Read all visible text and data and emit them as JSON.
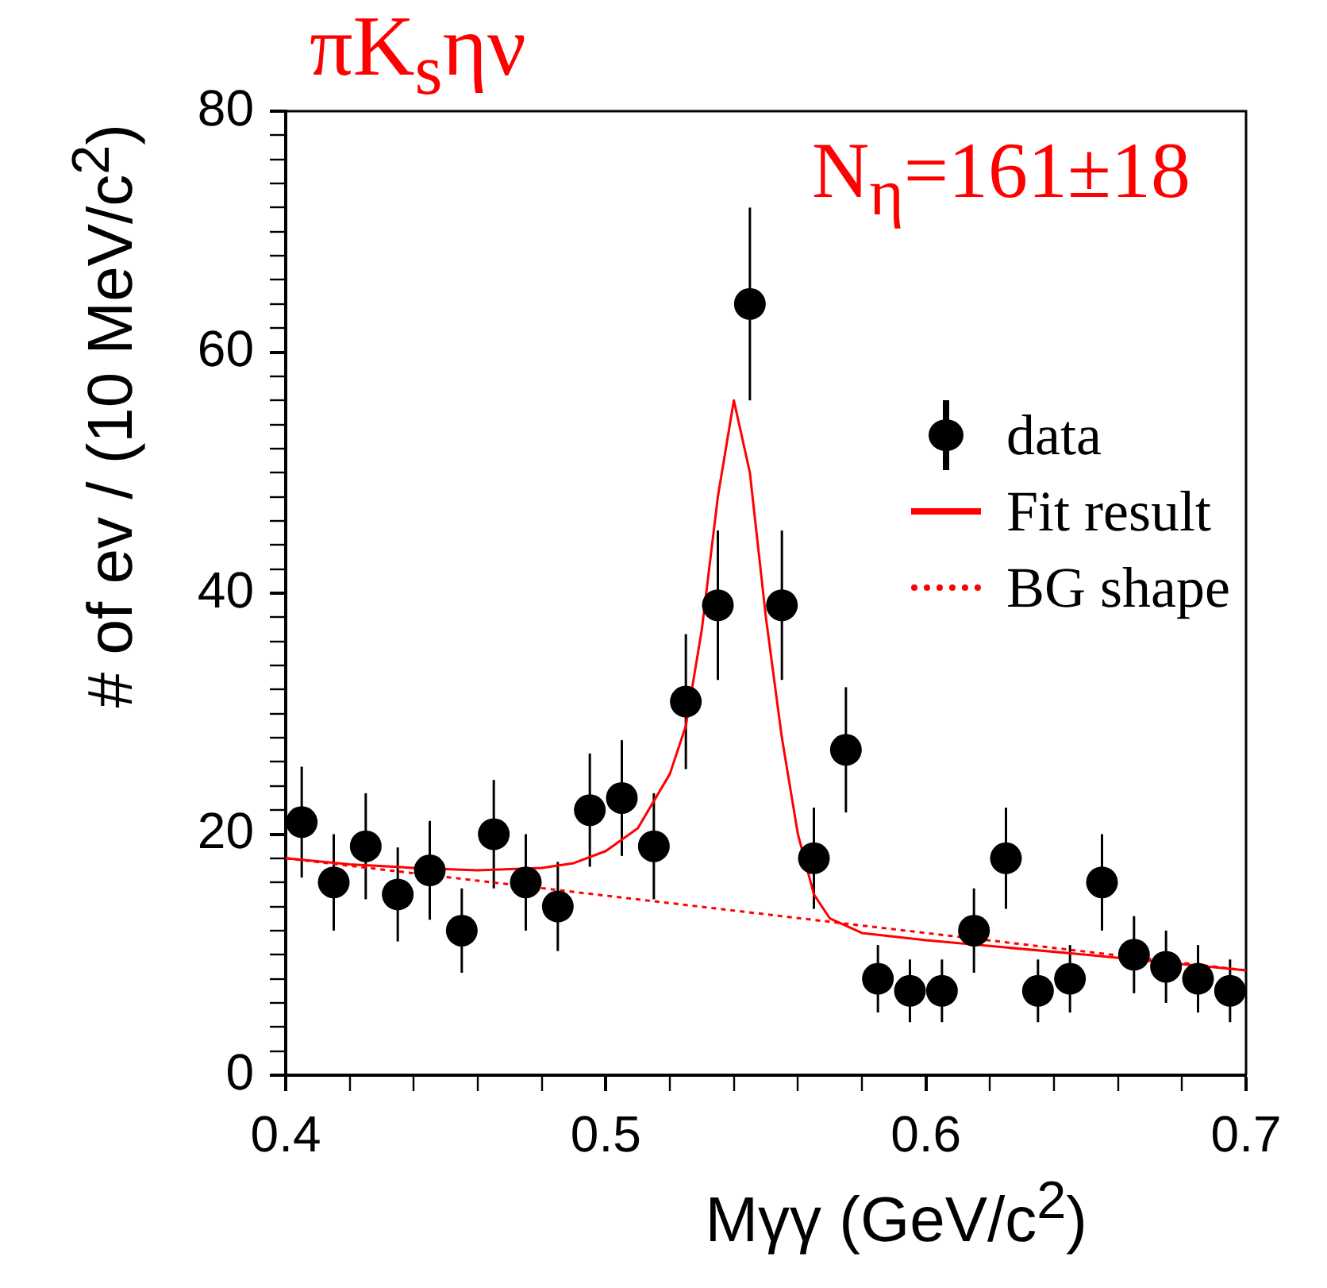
{
  "chart_data": {
    "type": "scatter",
    "title": "πK$_{s}$ην",
    "xlabel": "Mγγ (GeV/c$^{2}$)",
    "ylabel": "# of ev / (10 MeV/c$^{2}$)",
    "annotations": [
      "N$_{η}$=161±18"
    ],
    "xlim": [
      0.4,
      0.7
    ],
    "xticks": [
      0.4,
      {
        "value": 0.42,
        "label": null
      },
      {
        "value": 0.44,
        "label": null
      },
      {
        "value": 0.46,
        "label": null
      },
      {
        "value": 0.48,
        "label": null
      },
      0.5,
      {
        "value": 0.52,
        "label": null
      },
      {
        "value": 0.54,
        "label": null
      },
      {
        "value": 0.56,
        "label": null
      },
      {
        "value": 0.58,
        "label": null
      },
      0.6,
      {
        "value": 0.62,
        "label": null
      },
      {
        "value": 0.64,
        "label": null
      },
      {
        "value": 0.66,
        "label": null
      },
      {
        "value": 0.68,
        "label": null
      },
      0.7
    ],
    "ylim": [
      0,
      80
    ],
    "yticks": [
      0,
      {
        "value": 2,
        "label": null
      },
      {
        "value": 4,
        "label": null
      },
      {
        "value": 6,
        "label": null
      },
      {
        "value": 8,
        "label": null
      },
      {
        "value": 10,
        "label": null
      },
      {
        "value": 12,
        "label": null
      },
      {
        "value": 14,
        "label": null
      },
      {
        "value": 16,
        "label": null
      },
      {
        "value": 18,
        "label": null
      },
      20,
      {
        "value": 22,
        "label": null
      },
      {
        "value": 24,
        "label": null
      },
      {
        "value": 26,
        "label": null
      },
      {
        "value": 28,
        "label": null
      },
      {
        "value": 30,
        "label": null
      },
      {
        "value": 32,
        "label": null
      },
      {
        "value": 34,
        "label": null
      },
      {
        "value": 36,
        "label": null
      },
      {
        "value": 38,
        "label": null
      },
      40,
      {
        "value": 42,
        "label": null
      },
      {
        "value": 44,
        "label": null
      },
      {
        "value": 46,
        "label": null
      },
      {
        "value": 48,
        "label": null
      },
      {
        "value": 50,
        "label": null
      },
      {
        "value": 52,
        "label": null
      },
      {
        "value": 54,
        "label": null
      },
      {
        "value": 56,
        "label": null
      },
      {
        "value": 58,
        "label": null
      },
      60,
      {
        "value": 62,
        "label": null
      },
      {
        "value": 64,
        "label": null
      },
      {
        "value": 66,
        "label": null
      },
      {
        "value": 68,
        "label": null
      },
      {
        "value": 70,
        "label": null
      },
      {
        "value": 72,
        "label": null
      },
      {
        "value": 74,
        "label": null
      },
      {
        "value": 76,
        "label": null
      },
      {
        "value": 78,
        "label": null
      },
      80
    ],
    "grid": false,
    "legend": "top right",
    "series": [
      {
        "name": "data",
        "type": "scatter",
        "color": "#000000",
        "marker": "circle",
        "x": [
          0.405,
          0.415,
          0.425,
          0.435,
          0.445,
          0.455,
          0.465,
          0.475,
          0.485,
          0.495,
          0.505,
          0.515,
          0.525,
          0.535,
          0.545,
          0.555,
          0.565,
          0.575,
          0.585,
          0.595,
          0.605,
          0.615,
          0.625,
          0.635,
          0.645,
          0.655,
          0.665,
          0.675,
          0.685,
          0.695
        ],
        "values": [
          21,
          16,
          19,
          15,
          17,
          12,
          20,
          16,
          14,
          22,
          23,
          19,
          31,
          39,
          64,
          39,
          18,
          27,
          8,
          7,
          7,
          12,
          18,
          7,
          8,
          16,
          10,
          9,
          8,
          7
        ],
        "errors": [
          4.6,
          4,
          4.4,
          3.9,
          4.1,
          3.5,
          4.5,
          4,
          3.7,
          4.7,
          4.8,
          4.4,
          5.6,
          6.2,
          8,
          6.2,
          4.2,
          5.2,
          2.8,
          2.6,
          2.6,
          3.5,
          4.2,
          2.6,
          2.8,
          4,
          3.2,
          3,
          2.8,
          2.6
        ]
      },
      {
        "name": "Fit result",
        "type": "line",
        "color": "#ff0000",
        "marker": "none",
        "line_style": "solid",
        "x": [
          0.4,
          0.42,
          0.44,
          0.46,
          0.48,
          0.49,
          0.5,
          0.51,
          0.52,
          0.525,
          0.53,
          0.535,
          0.54,
          0.545,
          0.55,
          0.555,
          0.56,
          0.565,
          0.57,
          0.58,
          0.6,
          0.65,
          0.7
        ],
        "values": [
          18,
          17.5,
          17.2,
          17,
          17.2,
          17.6,
          18.6,
          20.5,
          25,
          29,
          37,
          48,
          56,
          50,
          38,
          28,
          20,
          15,
          13,
          11.8,
          11.2,
          10,
          8.7
        ]
      },
      {
        "name": "BG shape",
        "type": "line",
        "color": "#ff0000",
        "marker": "none",
        "line_style": "dotted",
        "x": [
          0.4,
          0.7
        ],
        "values": [
          18,
          8.7
        ]
      }
    ]
  }
}
